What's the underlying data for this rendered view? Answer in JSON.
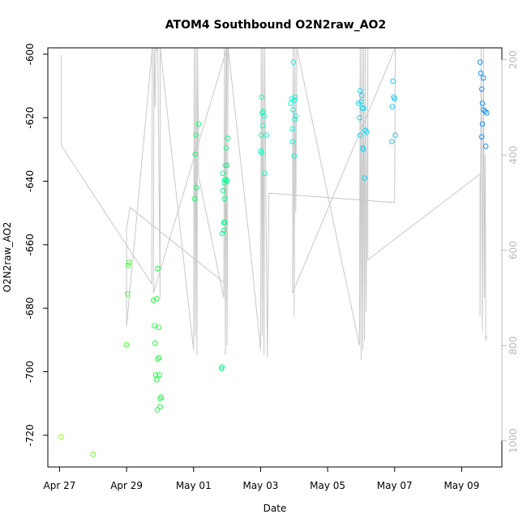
{
  "chart_data": {
    "type": "scatter",
    "title": "ATOM4 Southbound O2N2raw_AO2",
    "xlabel": "Date",
    "ylabel": "O2N2raw_AO2",
    "x_ticks": [
      "Apr 27",
      "Apr 29",
      "May 01",
      "May 03",
      "May 05",
      "May 07",
      "May 09"
    ],
    "x_tick_values": [
      0,
      2,
      4,
      6,
      8,
      10,
      12
    ],
    "xlim": [
      -0.35,
      13.2
    ],
    "ylim": [
      -730,
      -598
    ],
    "y_ticks": [
      -600,
      -620,
      -640,
      -660,
      -680,
      -700,
      -720
    ],
    "y2_ticks": [
      200,
      400,
      600,
      800,
      1000
    ],
    "y2lim": [
      1055,
      175
    ],
    "right_axis_color": "#b8b8b8",
    "point_color_gradient": [
      "#88ff00",
      "#00ff33",
      "#00ffcc",
      "#00ccff",
      "#0088ff"
    ],
    "line_color": "#c8c8c8",
    "points": [
      {
        "x": 0.05,
        "y": -720.5
      },
      {
        "x": 1.0,
        "y": -726.0
      },
      {
        "x": 2.0,
        "y": -691.5
      },
      {
        "x": 2.03,
        "y": -675.5
      },
      {
        "x": 2.05,
        "y": -666.5
      },
      {
        "x": 2.07,
        "y": -665.5
      },
      {
        "x": 2.8,
        "y": -677.5
      },
      {
        "x": 2.83,
        "y": -685.5
      },
      {
        "x": 2.85,
        "y": -691.0
      },
      {
        "x": 2.87,
        "y": -701.0
      },
      {
        "x": 2.9,
        "y": -702.5
      },
      {
        "x": 2.9,
        "y": -677.0
      },
      {
        "x": 2.92,
        "y": -712.0
      },
      {
        "x": 2.93,
        "y": -696.0
      },
      {
        "x": 2.93,
        "y": -667.5
      },
      {
        "x": 2.97,
        "y": -695.5
      },
      {
        "x": 2.97,
        "y": -686.0
      },
      {
        "x": 2.98,
        "y": -701.0
      },
      {
        "x": 3.0,
        "y": -708.5
      },
      {
        "x": 3.0,
        "y": -711.0
      },
      {
        "x": 3.03,
        "y": -708.0
      },
      {
        "x": 4.03,
        "y": -645.5
      },
      {
        "x": 4.05,
        "y": -631.5
      },
      {
        "x": 4.07,
        "y": -625.5
      },
      {
        "x": 4.08,
        "y": -642.0
      },
      {
        "x": 4.15,
        "y": -622.0
      },
      {
        "x": 4.83,
        "y": -699.0
      },
      {
        "x": 4.85,
        "y": -698.5
      },
      {
        "x": 4.85,
        "y": -656.5
      },
      {
        "x": 4.87,
        "y": -637.5
      },
      {
        "x": 4.88,
        "y": -643.0
      },
      {
        "x": 4.9,
        "y": -655.5
      },
      {
        "x": 4.9,
        "y": -653.0
      },
      {
        "x": 4.92,
        "y": -640.5
      },
      {
        "x": 4.92,
        "y": -645.5
      },
      {
        "x": 4.93,
        "y": -653.0
      },
      {
        "x": 4.93,
        "y": -639.5
      },
      {
        "x": 4.95,
        "y": -635.0
      },
      {
        "x": 4.97,
        "y": -629.5
      },
      {
        "x": 4.97,
        "y": -639.5
      },
      {
        "x": 5.0,
        "y": -635.0
      },
      {
        "x": 5.0,
        "y": -640.0
      },
      {
        "x": 5.02,
        "y": -626.5
      },
      {
        "x": 6.0,
        "y": -630.5
      },
      {
        "x": 6.02,
        "y": -625.5
      },
      {
        "x": 6.03,
        "y": -613.5
      },
      {
        "x": 6.03,
        "y": -631.0
      },
      {
        "x": 6.05,
        "y": -618.5
      },
      {
        "x": 6.07,
        "y": -622.5
      },
      {
        "x": 6.08,
        "y": -618.0
      },
      {
        "x": 6.1,
        "y": -619.5
      },
      {
        "x": 6.12,
        "y": -637.5
      },
      {
        "x": 6.17,
        "y": -625.5
      },
      {
        "x": 6.9,
        "y": -615.5
      },
      {
        "x": 6.93,
        "y": -614.0
      },
      {
        "x": 6.95,
        "y": -623.5
      },
      {
        "x": 6.95,
        "y": -627.5
      },
      {
        "x": 6.97,
        "y": -617.5
      },
      {
        "x": 6.98,
        "y": -602.5
      },
      {
        "x": 7.0,
        "y": -614.5
      },
      {
        "x": 7.0,
        "y": -632.0
      },
      {
        "x": 7.02,
        "y": -620.5
      },
      {
        "x": 7.03,
        "y": -613.5
      },
      {
        "x": 7.05,
        "y": -619.5
      },
      {
        "x": 8.92,
        "y": -615.5
      },
      {
        "x": 8.95,
        "y": -620.0
      },
      {
        "x": 8.97,
        "y": -625.5
      },
      {
        "x": 8.97,
        "y": -611.5
      },
      {
        "x": 9.0,
        "y": -615.0
      },
      {
        "x": 9.02,
        "y": -613.0
      },
      {
        "x": 9.03,
        "y": -617.0
      },
      {
        "x": 9.05,
        "y": -629.5
      },
      {
        "x": 9.07,
        "y": -630.0
      },
      {
        "x": 9.08,
        "y": -617.0
      },
      {
        "x": 9.1,
        "y": -639.0
      },
      {
        "x": 9.12,
        "y": -624.0
      },
      {
        "x": 9.17,
        "y": -624.5
      },
      {
        "x": 9.92,
        "y": -627.5
      },
      {
        "x": 9.93,
        "y": -616.5
      },
      {
        "x": 9.95,
        "y": -608.5
      },
      {
        "x": 9.97,
        "y": -613.5
      },
      {
        "x": 10.0,
        "y": -614.0
      },
      {
        "x": 10.02,
        "y": -625.5
      },
      {
        "x": 12.55,
        "y": -602.5
      },
      {
        "x": 12.57,
        "y": -606.0
      },
      {
        "x": 12.6,
        "y": -611.0
      },
      {
        "x": 12.6,
        "y": -626.0
      },
      {
        "x": 12.62,
        "y": -622.0
      },
      {
        "x": 12.62,
        "y": -615.5
      },
      {
        "x": 12.65,
        "y": -617.5
      },
      {
        "x": 12.65,
        "y": -607.5
      },
      {
        "x": 12.7,
        "y": -618.0
      },
      {
        "x": 12.72,
        "y": -629.0
      },
      {
        "x": 12.75,
        "y": -618.5
      }
    ],
    "line_y2": [
      [
        0.05,
        190
      ],
      [
        0.05,
        380
      ],
      [
        2.75,
        670
      ],
      [
        2.77,
        175
      ],
      [
        2.0,
        760
      ],
      [
        2.0,
        555
      ],
      [
        2.1,
        510
      ],
      [
        4.95,
        670
      ],
      [
        5.0,
        175
      ],
      [
        2.8,
        690
      ],
      [
        2.82,
        175
      ],
      [
        2.85,
        300
      ],
      [
        2.87,
        175
      ],
      [
        2.9,
        180
      ],
      [
        2.93,
        175
      ],
      [
        3.0,
        700
      ],
      [
        3.0,
        175
      ],
      [
        4.0,
        810
      ],
      [
        4.02,
        175
      ],
      [
        4.05,
        780
      ],
      [
        4.07,
        175
      ],
      [
        4.1,
        820
      ],
      [
        4.12,
        175
      ],
      [
        4.15,
        445
      ],
      [
        4.9,
        700
      ],
      [
        4.92,
        175
      ],
      [
        4.95,
        820
      ],
      [
        4.97,
        175
      ],
      [
        5.0,
        800
      ],
      [
        5.03,
        175
      ],
      [
        5.7,
        600
      ],
      [
        6.0,
        810
      ],
      [
        6.02,
        175
      ],
      [
        6.05,
        780
      ],
      [
        6.07,
        175
      ],
      [
        6.1,
        820
      ],
      [
        6.12,
        175
      ],
      [
        6.2,
        825
      ],
      [
        6.25,
        480
      ],
      [
        10.0,
        500
      ],
      [
        10.02,
        175
      ],
      [
        6.95,
        690
      ],
      [
        6.97,
        175
      ],
      [
        7.0,
        740
      ],
      [
        7.02,
        175
      ],
      [
        7.05,
        520
      ],
      [
        7.08,
        175
      ],
      [
        8.95,
        800
      ],
      [
        8.97,
        175
      ],
      [
        9.0,
        830
      ],
      [
        9.02,
        175
      ],
      [
        9.05,
        810
      ],
      [
        9.07,
        175
      ],
      [
        9.1,
        790
      ],
      [
        9.12,
        175
      ],
      [
        9.15,
        730
      ],
      [
        9.2,
        175
      ],
      [
        9.2,
        620
      ],
      [
        12.55,
        440
      ],
      [
        12.55,
        740
      ],
      [
        12.58,
        175
      ],
      [
        12.62,
        770
      ],
      [
        12.65,
        175
      ],
      [
        12.68,
        700
      ],
      [
        12.7,
        400
      ],
      [
        12.72,
        790
      ],
      [
        12.75,
        780
      ]
    ]
  }
}
